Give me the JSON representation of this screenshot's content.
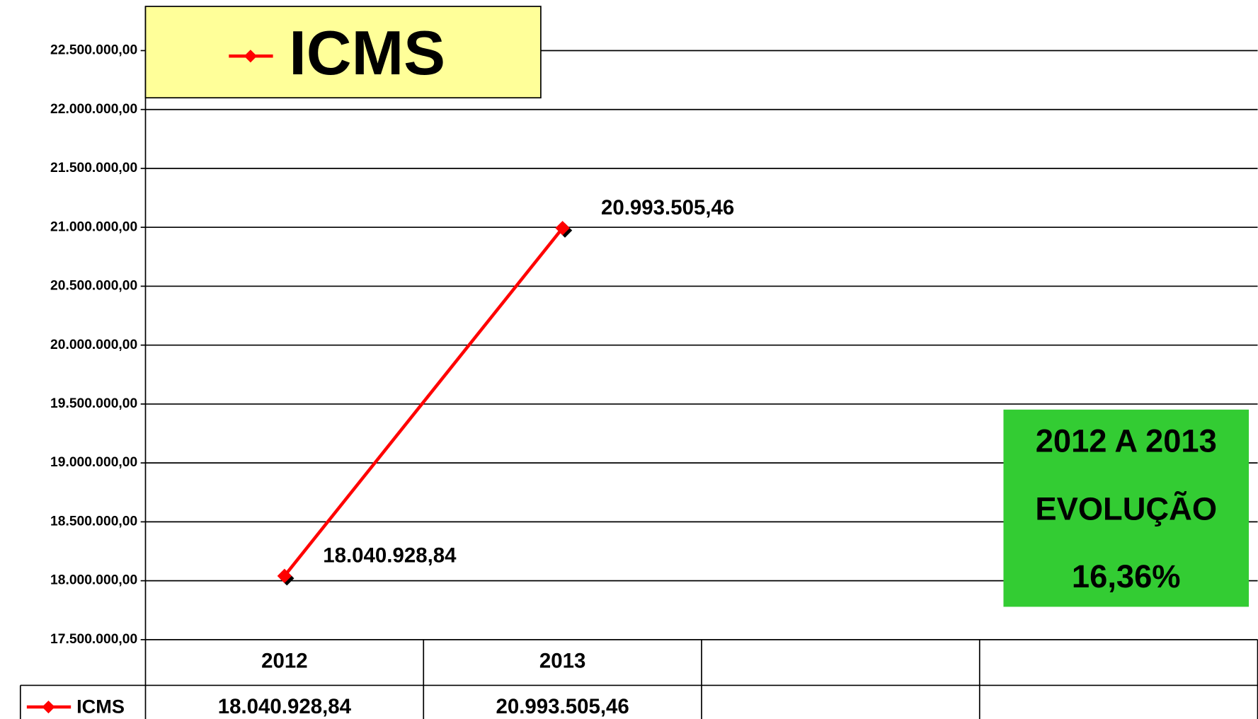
{
  "chart_data": {
    "type": "line",
    "title": "ICMS",
    "categories": [
      "2012",
      "2013",
      null,
      null
    ],
    "series": [
      {
        "name": "ICMS",
        "color": "#ff0000",
        "values": [
          18040928.84,
          20993505.46,
          null,
          null
        ],
        "value_labels": [
          "18.040.928,84",
          "20.993.505,46",
          null,
          null
        ]
      }
    ],
    "ylim": [
      17500000,
      22875000
    ],
    "yticks": [
      {
        "value": 17500000,
        "label": "17.500.000,00"
      },
      {
        "value": 18000000,
        "label": "18.000.000,00"
      },
      {
        "value": 18500000,
        "label": "18.500.000,00"
      },
      {
        "value": 19000000,
        "label": "19.000.000,00"
      },
      {
        "value": 19500000,
        "label": "19.500.000,00"
      },
      {
        "value": 20000000,
        "label": "20.000.000,00"
      },
      {
        "value": 20500000,
        "label": "20.500.000,00"
      },
      {
        "value": 21000000,
        "label": "21.000.000,00"
      },
      {
        "value": 21500000,
        "label": "21.500.000,00"
      },
      {
        "value": 22000000,
        "label": "22.000.000,00"
      },
      {
        "value": 22500000,
        "label": "22.500.000,00"
      }
    ],
    "grid": true,
    "legend_color": "#ffff99",
    "annotation_color": "#33cc33",
    "annotations": [
      "2012 A 2013",
      "EVOLUÇÃO",
      "16,36%"
    ]
  }
}
